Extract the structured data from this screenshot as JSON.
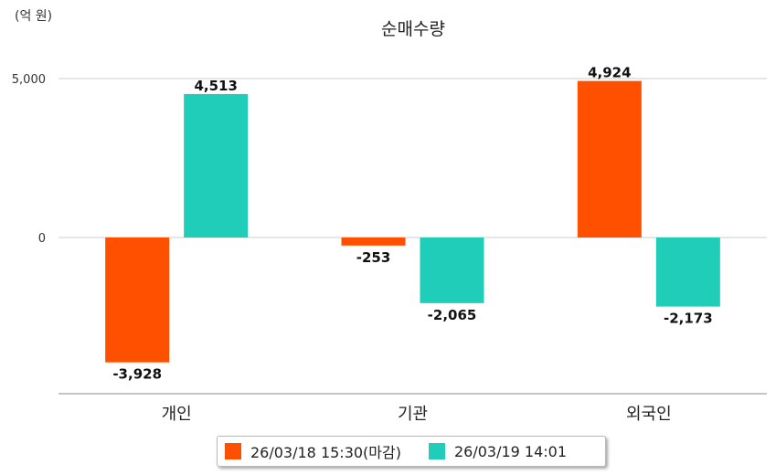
{
  "chart_data": {
    "type": "bar",
    "title": "순매수량",
    "unit_label": "(억 원)",
    "categories": [
      "개인",
      "기관",
      "외국인"
    ],
    "series": [
      {
        "name": "26/03/18 15:30(마감)",
        "color": "#ff5000",
        "values": [
          -3928,
          -253,
          4924
        ]
      },
      {
        "name": "26/03/19 14:01",
        "color": "#1fcdb9",
        "values": [
          4513,
          -2065,
          -2173
        ]
      }
    ],
    "data_labels": [
      [
        "-3,928",
        "-253",
        "4,924"
      ],
      [
        "4,513",
        "-2,065",
        "-2,173"
      ]
    ],
    "y_ticks": [
      {
        "value": 0,
        "label": "0"
      },
      {
        "value": 5000,
        "label": "5,000"
      }
    ],
    "ylim": [
      -4900,
      5000
    ],
    "grid": true,
    "legend_position": "bottom"
  }
}
